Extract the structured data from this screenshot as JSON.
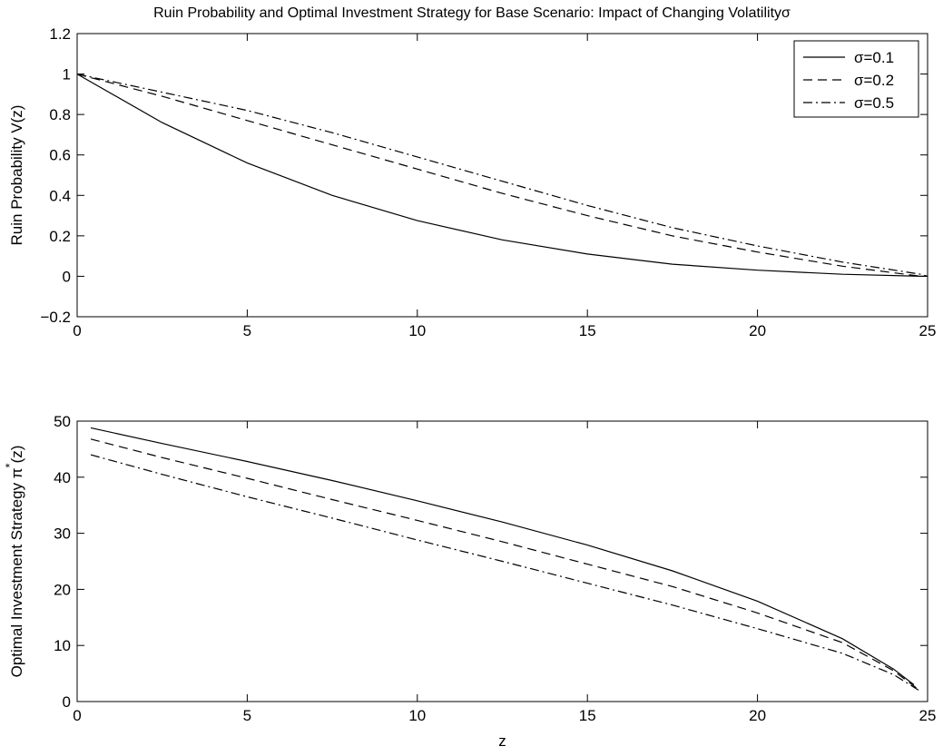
{
  "figure_title": "Ruin Probability and Optimal Investment Strategy for Base Scenario: Impact of Changing Volatilityσ",
  "colors": {
    "line": "#000000",
    "background": "#ffffff"
  },
  "chart_data": [
    {
      "type": "line",
      "title": "Ruin Probability and Optimal Investment Strategy for Base Scenario: Impact of Changing Volatilityσ",
      "xlabel": "",
      "ylabel": "Ruin Probability V(z)",
      "xlim": [
        0,
        25
      ],
      "ylim": [
        -0.2,
        1.2
      ],
      "xticks": [
        "0",
        "5",
        "10",
        "15",
        "20",
        "25"
      ],
      "yticks": [
        "−0.2",
        "0",
        "0.2",
        "0.4",
        "0.6",
        "0.8",
        "1",
        "1.2"
      ],
      "grid": false,
      "legend_position": "top-right",
      "x": [
        0,
        2.5,
        5,
        7.5,
        10,
        12.5,
        15,
        17.5,
        20,
        22.5,
        24.8,
        25
      ],
      "series": [
        {
          "name": "σ=0.1",
          "dash": "solid",
          "values": [
            1.0,
            0.76,
            0.56,
            0.4,
            0.275,
            0.18,
            0.11,
            0.06,
            0.03,
            0.01,
            0.0,
            0.0
          ]
        },
        {
          "name": "σ=0.2",
          "dash": "dashed",
          "values": [
            1.0,
            0.89,
            0.77,
            0.65,
            0.53,
            0.41,
            0.3,
            0.2,
            0.12,
            0.05,
            0.0,
            0.0
          ]
        },
        {
          "name": "σ=0.5",
          "dash": "dashdot",
          "values": [
            1.0,
            0.91,
            0.82,
            0.71,
            0.59,
            0.47,
            0.35,
            0.24,
            0.15,
            0.07,
            0.01,
            0.0
          ]
        }
      ]
    },
    {
      "type": "line",
      "title": "",
      "xlabel": "z",
      "ylabel": "Optimal Investment Strategy π",
      "ylabel_superscript": "*",
      "ylabel_suffix": "(z)",
      "xlim": [
        0,
        25
      ],
      "ylim": [
        0,
        50
      ],
      "xticks": [
        "0",
        "5",
        "10",
        "15",
        "20",
        "25"
      ],
      "yticks": [
        "0",
        "10",
        "20",
        "30",
        "40",
        "50"
      ],
      "grid": false,
      "series": [
        {
          "name": "σ=0.1",
          "dash": "solid",
          "x": [
            0.4,
            2.5,
            5,
            7.5,
            10,
            12.5,
            15,
            17.5,
            20,
            22.5,
            24,
            24.6
          ],
          "values": [
            48.8,
            46.0,
            42.8,
            39.4,
            35.8,
            32.0,
            27.9,
            23.3,
            17.9,
            11.2,
            5.8,
            3.0
          ]
        },
        {
          "name": "σ=0.2",
          "dash": "dashed",
          "x": [
            0.4,
            2.5,
            5,
            7.5,
            10,
            12.5,
            15,
            17.5,
            20,
            22.5,
            24,
            24.7
          ],
          "values": [
            46.8,
            43.5,
            39.8,
            36.0,
            32.3,
            28.5,
            24.5,
            20.5,
            15.8,
            10.5,
            5.5,
            2.3
          ]
        },
        {
          "name": "σ=0.5",
          "dash": "dashdot",
          "x": [
            0.4,
            2.5,
            5,
            7.5,
            10,
            12.5,
            15,
            17.5,
            20,
            22.5,
            24,
            24.8
          ],
          "values": [
            44.0,
            40.5,
            36.5,
            32.7,
            28.8,
            25.0,
            21.1,
            17.2,
            13.0,
            8.6,
            4.8,
            1.8
          ]
        }
      ]
    }
  ]
}
